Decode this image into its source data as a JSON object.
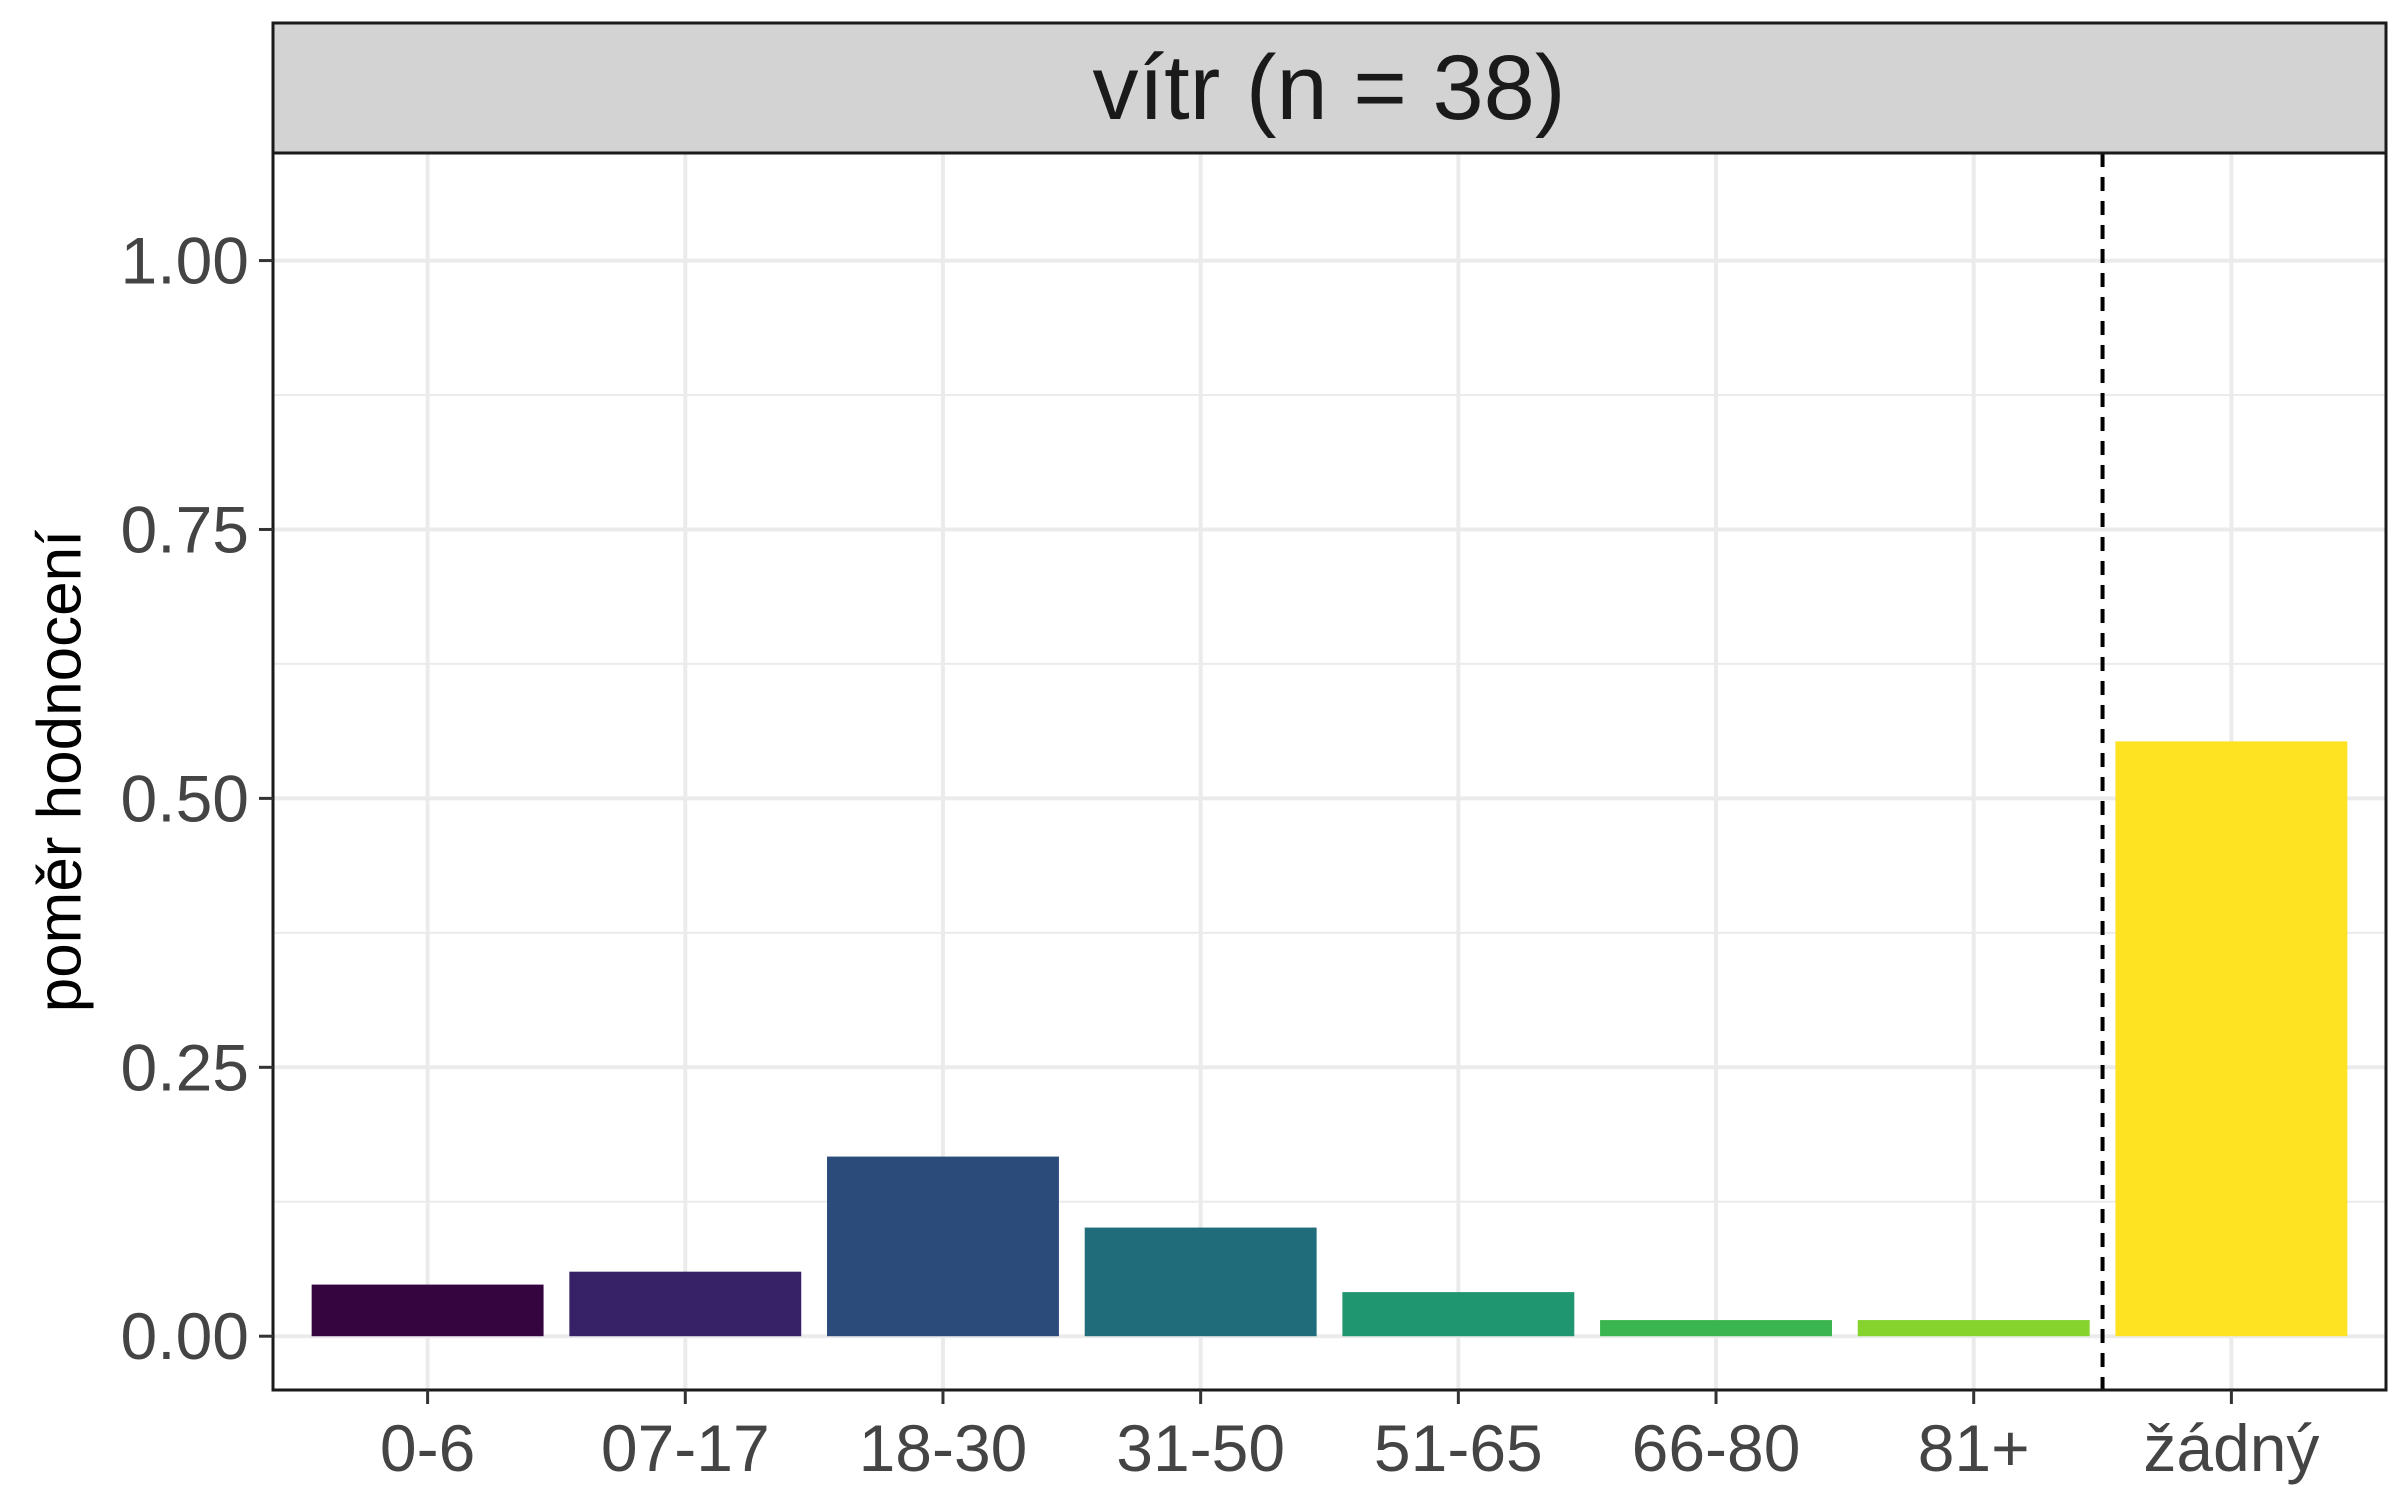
{
  "chart_data": {
    "type": "bar",
    "title": "vítr (n = 38)",
    "xlabel": "",
    "ylabel": "poměr hodnocení",
    "categories": [
      "0-6",
      "07-17",
      "18-30",
      "31-50",
      "51-65",
      "66-80",
      "81+",
      "žádný"
    ],
    "values": [
      0.048,
      0.06,
      0.167,
      0.101,
      0.041,
      0.015,
      0.015,
      0.553
    ],
    "colors": [
      "#35053f",
      "#372268",
      "#2b4b7b",
      "#206c7a",
      "#1f9670",
      "#3ab54f",
      "#85d32c",
      "#fde321"
    ],
    "ylim": [
      -0.05,
      1.1
    ],
    "y_ticks": [
      0.0,
      0.25,
      0.5,
      0.75,
      1.0
    ],
    "y_tick_labels": [
      "0.00",
      "0.25",
      "0.50",
      "0.75",
      "1.00"
    ],
    "y_minor_ticks": [
      0.125,
      0.375,
      0.625,
      0.875
    ],
    "grid": true,
    "separator_after_category": "81+",
    "separator_style": "dashed",
    "strip_background": "#d3d3d3"
  }
}
